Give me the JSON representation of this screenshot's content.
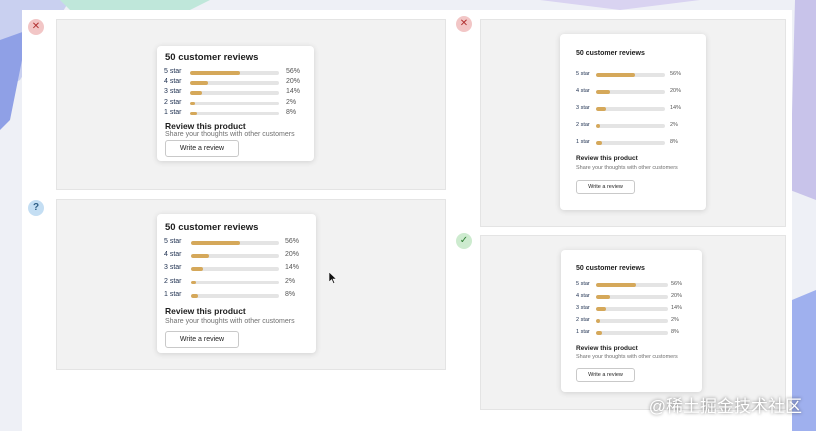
{
  "badges": {
    "top_left": "✕",
    "top_right": "✕",
    "bottom_left": "?",
    "bottom_right": "✓"
  },
  "card": {
    "title": "50 customer reviews",
    "ratings": [
      {
        "label": "5 star",
        "percent": "56%",
        "value": 56
      },
      {
        "label": "4 star",
        "percent": "20%",
        "value": 20
      },
      {
        "label": "3 star",
        "percent": "14%",
        "value": 14
      },
      {
        "label": "2 star",
        "percent": "2%",
        "value": 2
      },
      {
        "label": "1 star",
        "percent": "8%",
        "value": 8
      }
    ],
    "review_heading": "Review this product",
    "review_sub": "Share your thoughts with other customers",
    "button_label": "Write a review"
  },
  "colors": {
    "bar_fill": "#d5a85a",
    "bar_track": "#e4e4e4",
    "star_label": "#1d2f4f"
  },
  "watermark": "@稀土掘金技术社区"
}
